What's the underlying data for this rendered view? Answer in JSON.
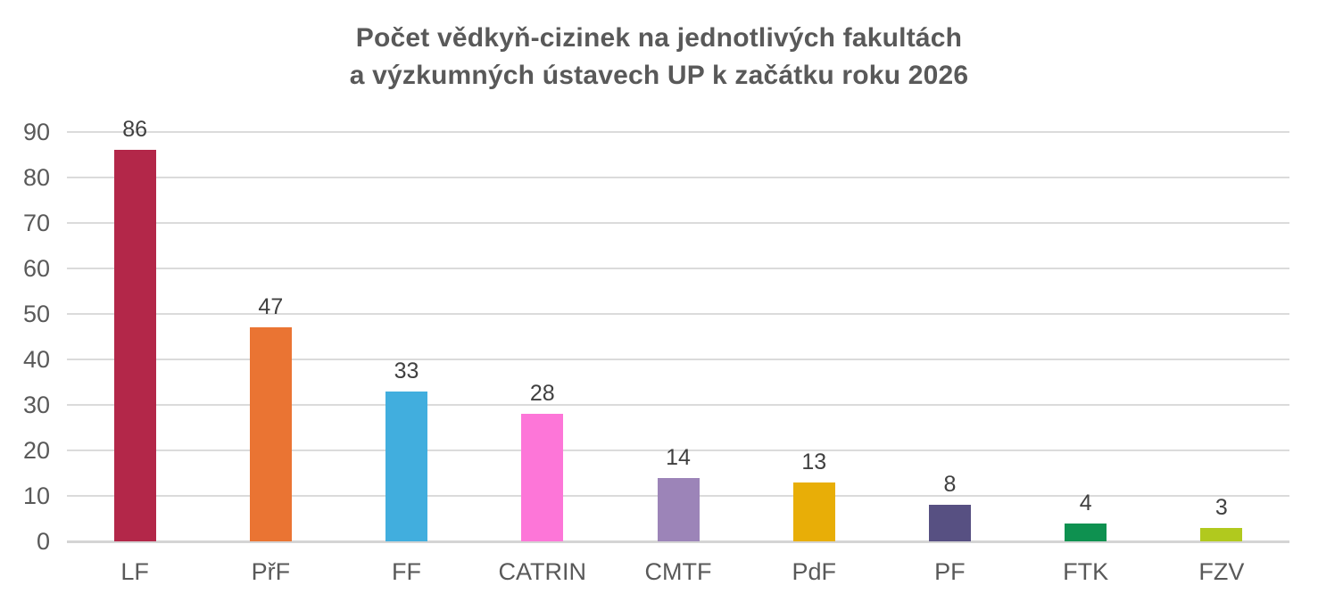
{
  "title": {
    "line1": "Počet vědkyň-cizinek na jednotlivých fakultách",
    "line2": "a výzkumných ústavech UP k začátku roku 2026"
  },
  "chart_data": {
    "type": "bar",
    "title": "Počet vědkyň-cizinek na jednotlivých fakultách a výzkumných ústavech UP k začátku roku 2026",
    "categories": [
      "LF",
      "PřF",
      "FF",
      "CATRIN",
      "CMTF",
      "PdF",
      "PF",
      "FTK",
      "FZV"
    ],
    "values": [
      86,
      47,
      33,
      28,
      14,
      13,
      8,
      4,
      3
    ],
    "bar_colors": [
      "#B32749",
      "#EA7433",
      "#41AEDE",
      "#FD76D8",
      "#9C84B8",
      "#E8AE07",
      "#575082",
      "#0E9150",
      "#B1C91E"
    ],
    "xlabel": "",
    "ylabel": "",
    "ylim": [
      0,
      90
    ],
    "ytick_step": 10,
    "ytick_labels": [
      "0",
      "10",
      "20",
      "30",
      "40",
      "50",
      "60",
      "70",
      "80",
      "90"
    ],
    "grid": true,
    "data_labels": true,
    "legend": "none",
    "colors": {
      "grid": "#DBDBDB",
      "axis_line": "#D4D4D4",
      "axis_text": "#595959",
      "data_label_text": "#404040",
      "title_text": "#595959",
      "background": "#FFFFFF"
    }
  }
}
